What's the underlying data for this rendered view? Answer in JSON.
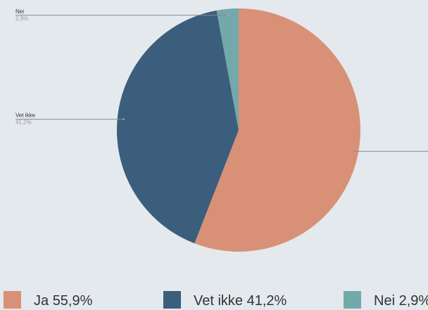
{
  "chart_data": {
    "type": "pie",
    "categories": [
      "Ja",
      "Vet ikke",
      "Nei"
    ],
    "values": [
      55.9,
      41.2,
      2.9
    ],
    "value_labels": [
      "55,9%",
      "41,2%",
      "2,9%"
    ],
    "colors": [
      "#d89176",
      "#3b5e7d",
      "#74a9ab"
    ]
  }
}
